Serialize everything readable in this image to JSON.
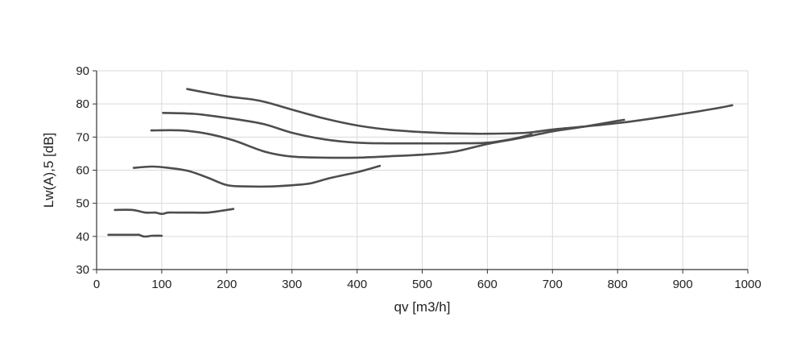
{
  "chart_data": {
    "type": "line",
    "title": "",
    "xlabel": "qv [m3/h]",
    "ylabel": "Lw(A),5 [dB]",
    "xlim": [
      0,
      1000
    ],
    "ylim": [
      30,
      90
    ],
    "xticks": [
      0,
      100,
      200,
      300,
      400,
      500,
      600,
      700,
      800,
      900,
      1000
    ],
    "yticks": [
      30,
      40,
      50,
      60,
      70,
      80,
      90
    ],
    "grid": true,
    "legend": "none",
    "line_color": "#4d4d4d",
    "series": [
      {
        "x": [
          18,
          40,
          60,
          65,
          72,
          78,
          85,
          100
        ],
        "y": [
          40.5,
          40.5,
          40.5,
          40.5,
          40,
          40,
          40.2,
          40.2
        ]
      },
      {
        "x": [
          28,
          55,
          75,
          90,
          100,
          110,
          125,
          150,
          170,
          190,
          210
        ],
        "y": [
          48,
          48,
          47.2,
          47.2,
          46.8,
          47.2,
          47.2,
          47.2,
          47.2,
          47.7,
          48.3
        ]
      },
      {
        "x": [
          57,
          85,
          110,
          140,
          170,
          200,
          230,
          270,
          310,
          330,
          360,
          400,
          435
        ],
        "y": [
          60.7,
          61.1,
          60.7,
          59.8,
          57.8,
          55.5,
          55.1,
          55.1,
          55.6,
          56.1,
          57.7,
          59.4,
          61.3
        ]
      },
      {
        "x": [
          84,
          130,
          170,
          210,
          260,
          300,
          350,
          400,
          450,
          510,
          550,
          600,
          650,
          700,
          750,
          800,
          810
        ],
        "y": [
          72,
          72,
          71,
          69,
          65.5,
          64.1,
          63.8,
          63.8,
          64.2,
          64.8,
          65.6,
          67.9,
          69.7,
          71.7,
          73.2,
          74.9,
          75.2
        ]
      },
      {
        "x": [
          102,
          150,
          200,
          255,
          300,
          350,
          400,
          450,
          500,
          550,
          600,
          640,
          668
        ],
        "y": [
          77.3,
          77,
          75.8,
          74,
          71.3,
          69.3,
          68.3,
          68.1,
          68.1,
          68.1,
          68.3,
          69.5,
          70.8
        ]
      },
      {
        "x": [
          139,
          200,
          250,
          300,
          350,
          400,
          450,
          500,
          550,
          600,
          660,
          700,
          750,
          800,
          850,
          900,
          950,
          976
        ],
        "y": [
          84.5,
          82.3,
          81,
          78.3,
          75.6,
          73.5,
          72.2,
          71.5,
          71.1,
          71,
          71.3,
          72.3,
          73.2,
          74.2,
          75.5,
          77,
          78.6,
          79.6
        ]
      }
    ]
  }
}
